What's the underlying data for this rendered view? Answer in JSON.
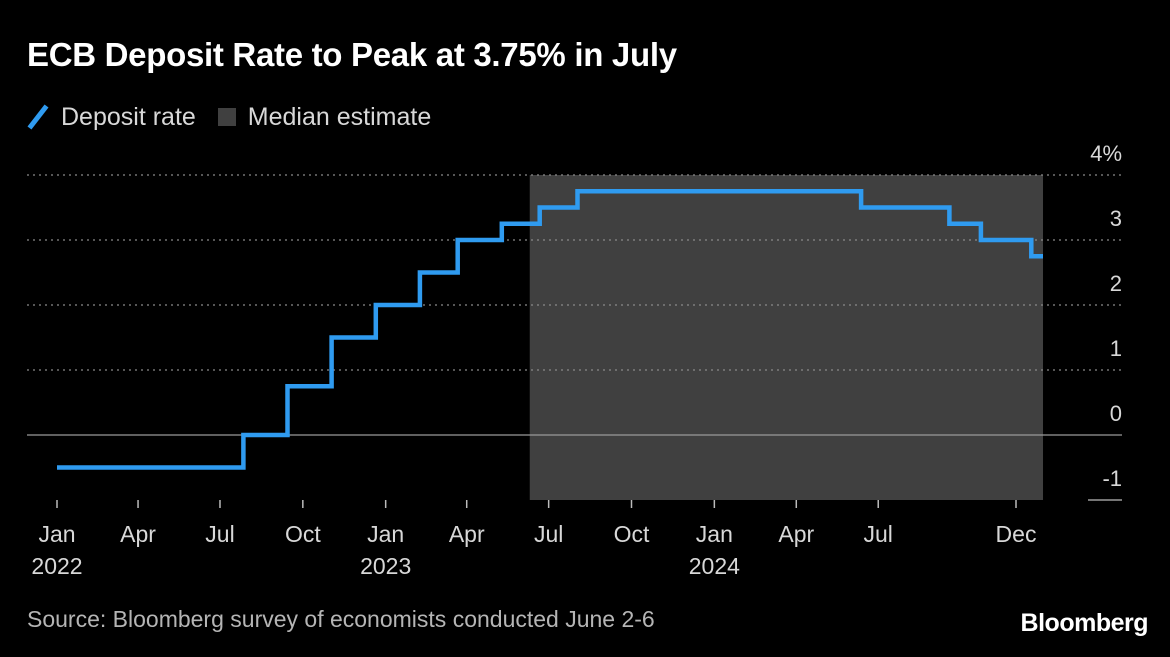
{
  "title": "ECB Deposit Rate to Peak at 3.75% in July",
  "legend": {
    "deposit_rate": "Deposit rate",
    "median_estimate": "Median estimate"
  },
  "source": "Source: Bloomberg survey of economists conducted June 2-6",
  "brand": "Bloomberg",
  "colors": {
    "line": "#2f9bf0",
    "shade": "#404040",
    "background": "#000000",
    "grid": "#8a8a8a",
    "text": "#d8d8d8"
  },
  "chart_data": {
    "type": "line",
    "step": "after",
    "series": [
      {
        "name": "Deposit rate",
        "points": [
          [
            "2022-01-01",
            -0.5
          ],
          [
            "2022-07-27",
            0.0
          ],
          [
            "2022-09-14",
            0.75
          ],
          [
            "2022-11-02",
            1.5
          ],
          [
            "2022-12-21",
            2.0
          ],
          [
            "2023-02-08",
            2.5
          ],
          [
            "2023-03-22",
            3.0
          ],
          [
            "2023-05-10",
            3.25
          ],
          [
            "2023-06-21",
            3.5
          ],
          [
            "2023-08-02",
            3.75
          ],
          [
            "2024-06-12",
            3.5
          ],
          [
            "2024-09-18",
            3.25
          ],
          [
            "2024-10-23",
            3.0
          ],
          [
            "2024-12-18",
            2.75
          ],
          [
            "2024-12-31",
            2.75
          ]
        ]
      }
    ],
    "shaded_region": {
      "label": "Median estimate",
      "x_start": "2023-06-10",
      "x_end": "2024-12-31"
    },
    "ylim": [
      -1,
      4
    ],
    "yticks": [
      "-1",
      "0",
      "1",
      "2",
      "3",
      "4%"
    ],
    "xticks": [
      {
        "date": "2022-01-01",
        "label": "Jan",
        "year": "2022"
      },
      {
        "date": "2022-04-01",
        "label": "Apr"
      },
      {
        "date": "2022-07-01",
        "label": "Jul"
      },
      {
        "date": "2022-10-01",
        "label": "Oct"
      },
      {
        "date": "2023-01-01",
        "label": "Jan",
        "year": "2023"
      },
      {
        "date": "2023-04-01",
        "label": "Apr"
      },
      {
        "date": "2023-07-01",
        "label": "Jul"
      },
      {
        "date": "2023-10-01",
        "label": "Oct"
      },
      {
        "date": "2024-01-01",
        "label": "Jan",
        "year": "2024"
      },
      {
        "date": "2024-04-01",
        "label": "Apr"
      },
      {
        "date": "2024-07-01",
        "label": "Jul"
      },
      {
        "date": "2024-12-01",
        "label": "Dec"
      }
    ],
    "grid": "horizontal-dotted",
    "legend_position": "top-left"
  }
}
